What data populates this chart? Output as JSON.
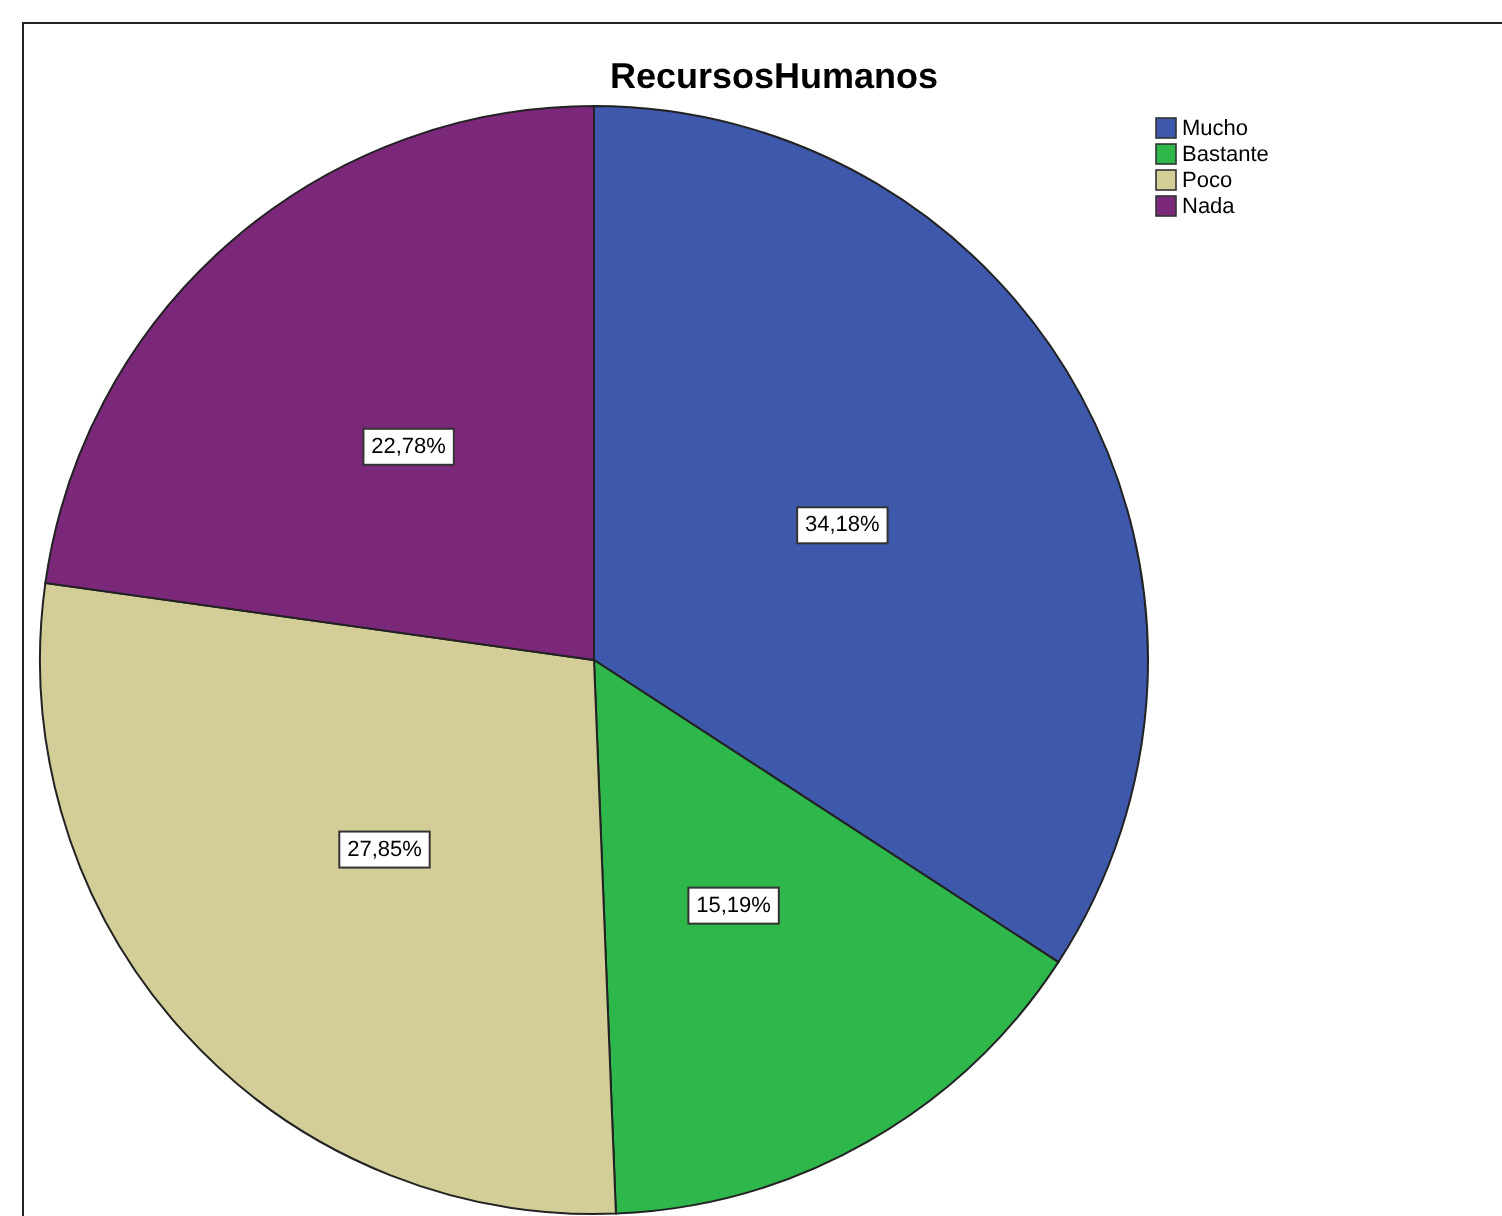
{
  "chart_data": {
    "type": "pie",
    "title": "RecursosHumanos",
    "categories": [
      "Mucho",
      "Bastante",
      "Poco",
      "Nada"
    ],
    "values": [
      34.18,
      15.19,
      27.85,
      22.78
    ],
    "colors": [
      "#3e58ac",
      "#2eb84b",
      "#d3ce97",
      "#7b287b"
    ],
    "value_labels": [
      "34,18%",
      "15,19%",
      "27,85%",
      "22,78%"
    ],
    "legend": "top right"
  }
}
